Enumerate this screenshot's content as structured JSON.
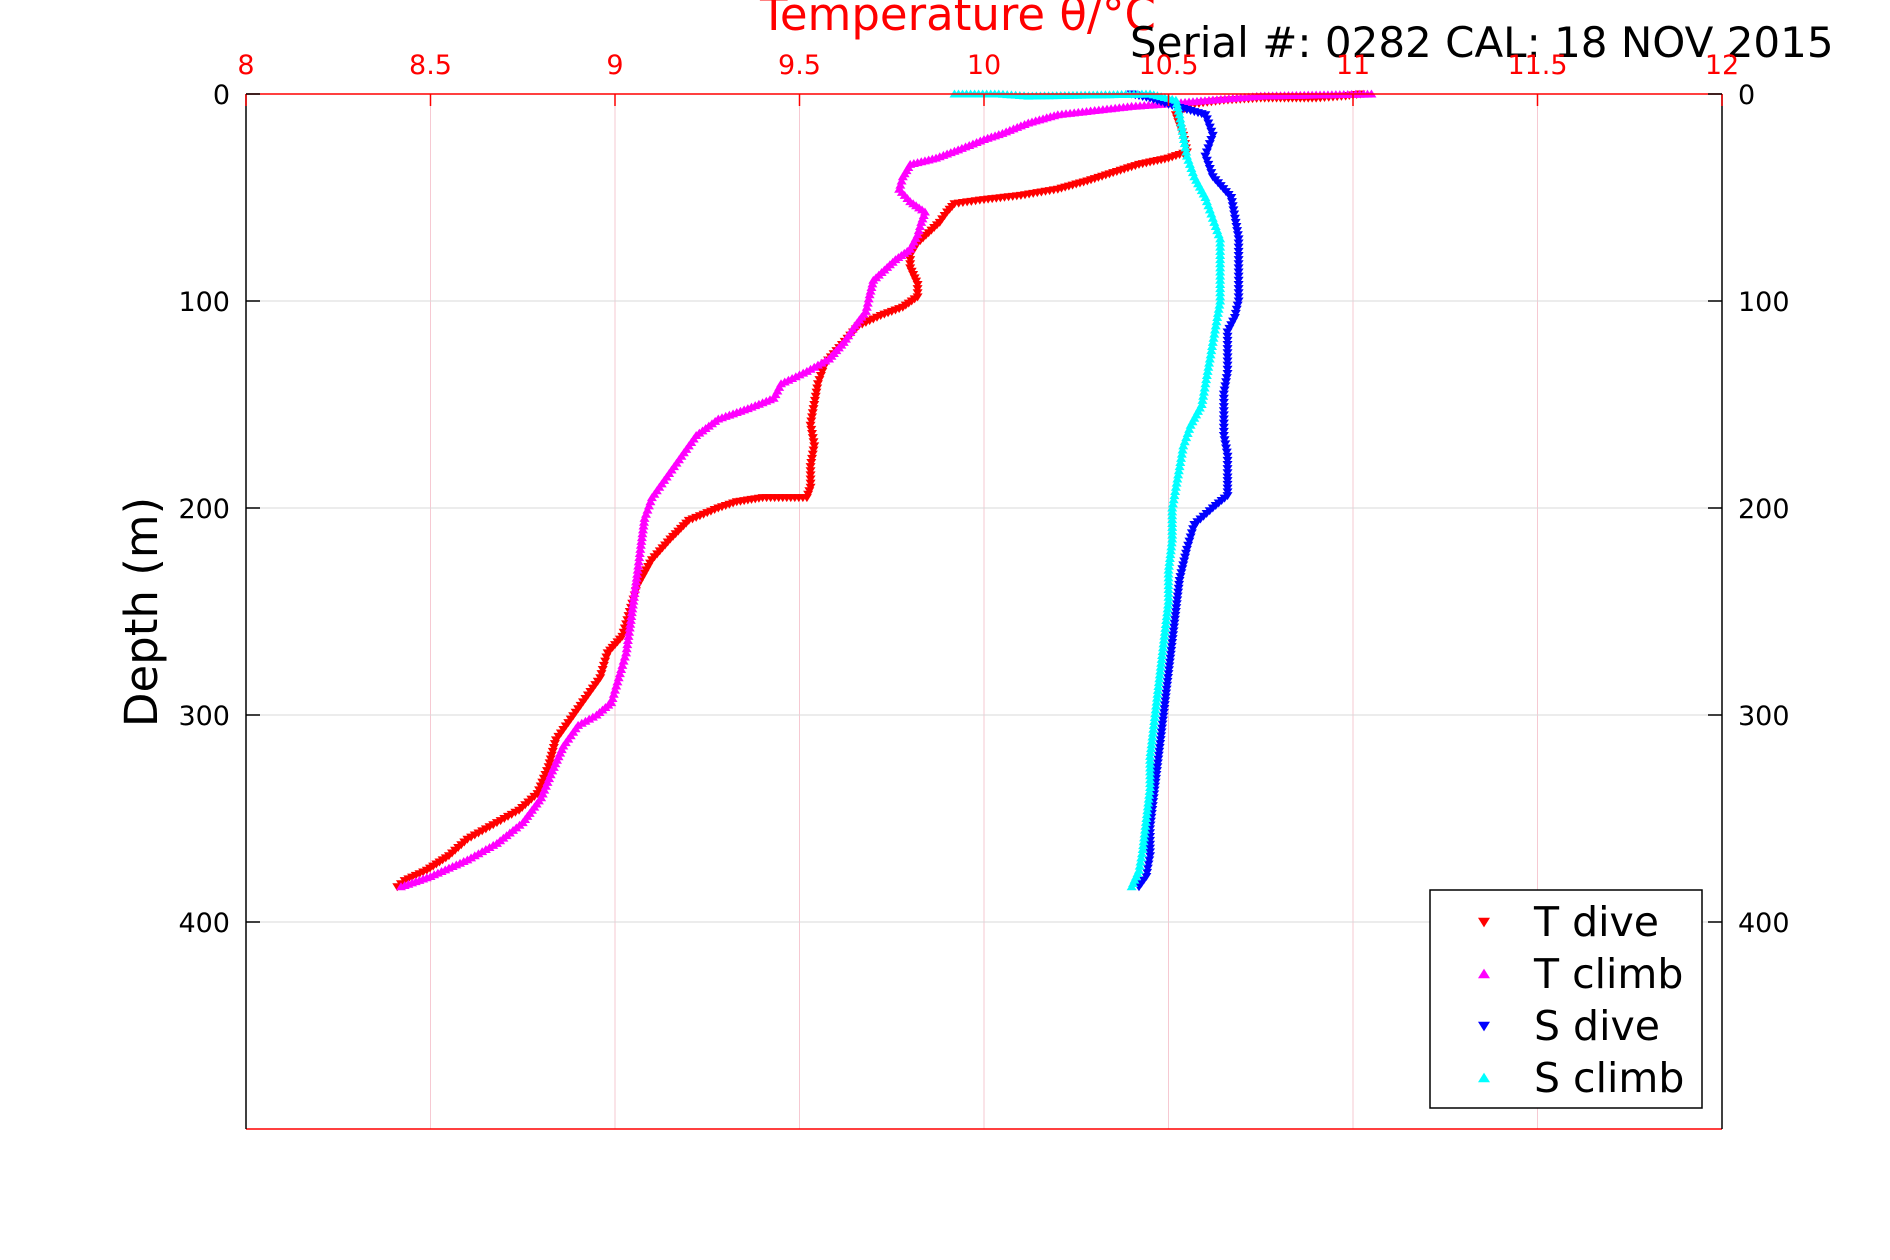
{
  "chart_data": {
    "type": "scatter",
    "title": "Temperature θ/°C",
    "subtitle": "Serial #: 0282  CAL: 18 NOV 2015",
    "xlabel": "Temperature θ/°C",
    "ylabel": "Depth (m)",
    "xlim": [
      8,
      12
    ],
    "ylim": [
      500,
      0
    ],
    "x_ticks": [
      "8",
      "8.5",
      "9",
      "9.5",
      "10",
      "10.5",
      "11",
      "11.5",
      "12"
    ],
    "y_ticks": [
      "0",
      "100",
      "200",
      "300",
      "400"
    ],
    "grid": true,
    "legend_position": "bottom-right",
    "colors": {
      "axis_top": "#ff0000",
      "axis_frame": "#ff0000",
      "t_dive": "#ff0000",
      "t_climb": "#ff00ff",
      "s_dive": "#0000ff",
      "s_climb": "#00ffff"
    },
    "series": [
      {
        "name": "T dive",
        "marker": "triangle-down",
        "color": "#ff0000",
        "points": [
          [
            11.02,
            0
          ],
          [
            10.98,
            1
          ],
          [
            10.9,
            2
          ],
          [
            10.75,
            2
          ],
          [
            10.65,
            3
          ],
          [
            10.56,
            5
          ],
          [
            10.52,
            10
          ],
          [
            10.53,
            15
          ],
          [
            10.54,
            20
          ],
          [
            10.55,
            28
          ],
          [
            10.5,
            31
          ],
          [
            10.42,
            34
          ],
          [
            10.35,
            38
          ],
          [
            10.28,
            42
          ],
          [
            10.2,
            46
          ],
          [
            10.1,
            49
          ],
          [
            10.0,
            51
          ],
          [
            9.92,
            53
          ],
          [
            9.9,
            57
          ],
          [
            9.88,
            62
          ],
          [
            9.85,
            67
          ],
          [
            9.82,
            72
          ],
          [
            9.8,
            78
          ],
          [
            9.8,
            84
          ],
          [
            9.82,
            92
          ],
          [
            9.82,
            98
          ],
          [
            9.78,
            103
          ],
          [
            9.72,
            107
          ],
          [
            9.66,
            112
          ],
          [
            9.63,
            118
          ],
          [
            9.6,
            124
          ],
          [
            9.57,
            130
          ],
          [
            9.55,
            140
          ],
          [
            9.54,
            150
          ],
          [
            9.53,
            160
          ],
          [
            9.54,
            170
          ],
          [
            9.53,
            180
          ],
          [
            9.53,
            190
          ],
          [
            9.52,
            195
          ],
          [
            9.4,
            195
          ],
          [
            9.33,
            197
          ],
          [
            9.28,
            200
          ],
          [
            9.2,
            206
          ],
          [
            9.15,
            215
          ],
          [
            9.1,
            225
          ],
          [
            9.06,
            238
          ],
          [
            9.04,
            250
          ],
          [
            9.02,
            262
          ],
          [
            8.98,
            270
          ],
          [
            8.96,
            282
          ],
          [
            8.92,
            292
          ],
          [
            8.88,
            302
          ],
          [
            8.84,
            312
          ],
          [
            8.82,
            325
          ],
          [
            8.79,
            338
          ],
          [
            8.74,
            346
          ],
          [
            8.68,
            352
          ],
          [
            8.6,
            360
          ],
          [
            8.55,
            368
          ],
          [
            8.49,
            375
          ],
          [
            8.43,
            380
          ],
          [
            8.41,
            383
          ]
        ]
      },
      {
        "name": "T climb",
        "marker": "triangle-up",
        "color": "#ff00ff",
        "points": [
          [
            11.05,
            0
          ],
          [
            10.75,
            1
          ],
          [
            10.48,
            5
          ],
          [
            10.4,
            6
          ],
          [
            10.3,
            8
          ],
          [
            10.2,
            10
          ],
          [
            10.12,
            14
          ],
          [
            10.05,
            19
          ],
          [
            10.0,
            22
          ],
          [
            9.93,
            27
          ],
          [
            9.87,
            31
          ],
          [
            9.8,
            34
          ],
          [
            9.78,
            40
          ],
          [
            9.77,
            46
          ],
          [
            9.8,
            52
          ],
          [
            9.84,
            57
          ],
          [
            9.83,
            62
          ],
          [
            9.82,
            68
          ],
          [
            9.8,
            75
          ],
          [
            9.76,
            80
          ],
          [
            9.73,
            85
          ],
          [
            9.7,
            90
          ],
          [
            9.69,
            97
          ],
          [
            9.68,
            105
          ],
          [
            9.65,
            112
          ],
          [
            9.62,
            120
          ],
          [
            9.58,
            128
          ],
          [
            9.52,
            134
          ],
          [
            9.45,
            140
          ],
          [
            9.43,
            147
          ],
          [
            9.36,
            152
          ],
          [
            9.28,
            157
          ],
          [
            9.22,
            165
          ],
          [
            9.18,
            175
          ],
          [
            9.14,
            185
          ],
          [
            9.1,
            195
          ],
          [
            9.08,
            205
          ],
          [
            9.07,
            218
          ],
          [
            9.06,
            232
          ],
          [
            9.05,
            245
          ],
          [
            9.04,
            258
          ],
          [
            9.03,
            270
          ],
          [
            9.01,
            282
          ],
          [
            8.99,
            294
          ],
          [
            8.95,
            300
          ],
          [
            8.9,
            305
          ],
          [
            8.86,
            315
          ],
          [
            8.83,
            327
          ],
          [
            8.8,
            340
          ],
          [
            8.75,
            352
          ],
          [
            8.68,
            362
          ],
          [
            8.6,
            370
          ],
          [
            8.5,
            378
          ],
          [
            8.42,
            383
          ]
        ]
      },
      {
        "name": "S dive",
        "marker": "triangle-down",
        "color": "#0000ff",
        "points": [
          [
            10.4,
            0
          ],
          [
            10.45,
            2
          ],
          [
            10.5,
            5
          ],
          [
            10.6,
            10
          ],
          [
            10.62,
            20
          ],
          [
            10.6,
            30
          ],
          [
            10.62,
            40
          ],
          [
            10.67,
            50
          ],
          [
            10.68,
            60
          ],
          [
            10.69,
            70
          ],
          [
            10.69,
            80
          ],
          [
            10.69,
            90
          ],
          [
            10.69,
            100
          ],
          [
            10.68,
            108
          ],
          [
            10.66,
            115
          ],
          [
            10.66,
            125
          ],
          [
            10.66,
            135
          ],
          [
            10.65,
            145
          ],
          [
            10.65,
            155
          ],
          [
            10.65,
            165
          ],
          [
            10.66,
            175
          ],
          [
            10.66,
            185
          ],
          [
            10.66,
            194
          ],
          [
            10.62,
            200
          ],
          [
            10.57,
            208
          ],
          [
            10.55,
            220
          ],
          [
            10.53,
            235
          ],
          [
            10.52,
            250
          ],
          [
            10.51,
            265
          ],
          [
            10.5,
            280
          ],
          [
            10.49,
            295
          ],
          [
            10.48,
            310
          ],
          [
            10.47,
            325
          ],
          [
            10.46,
            340
          ],
          [
            10.45,
            355
          ],
          [
            10.45,
            368
          ],
          [
            10.44,
            378
          ],
          [
            10.42,
            383
          ]
        ]
      },
      {
        "name": "S climb",
        "marker": "triangle-up",
        "color": "#00ffff",
        "points": [
          [
            9.92,
            0
          ],
          [
            10.04,
            0
          ],
          [
            10.12,
            1
          ],
          [
            10.45,
            0
          ],
          [
            10.52,
            3
          ],
          [
            10.53,
            10
          ],
          [
            10.54,
            20
          ],
          [
            10.55,
            30
          ],
          [
            10.57,
            40
          ],
          [
            10.6,
            50
          ],
          [
            10.62,
            60
          ],
          [
            10.64,
            70
          ],
          [
            10.64,
            80
          ],
          [
            10.64,
            90
          ],
          [
            10.64,
            100
          ],
          [
            10.63,
            110
          ],
          [
            10.62,
            120
          ],
          [
            10.61,
            130
          ],
          [
            10.6,
            140
          ],
          [
            10.59,
            150
          ],
          [
            10.56,
            160
          ],
          [
            10.54,
            170
          ],
          [
            10.53,
            180
          ],
          [
            10.52,
            190
          ],
          [
            10.51,
            200
          ],
          [
            10.51,
            215
          ],
          [
            10.5,
            230
          ],
          [
            10.5,
            245
          ],
          [
            10.49,
            260
          ],
          [
            10.48,
            275
          ],
          [
            10.47,
            290
          ],
          [
            10.46,
            305
          ],
          [
            10.45,
            320
          ],
          [
            10.45,
            335
          ],
          [
            10.44,
            350
          ],
          [
            10.43,
            365
          ],
          [
            10.42,
            375
          ],
          [
            10.4,
            383
          ]
        ]
      }
    ]
  }
}
